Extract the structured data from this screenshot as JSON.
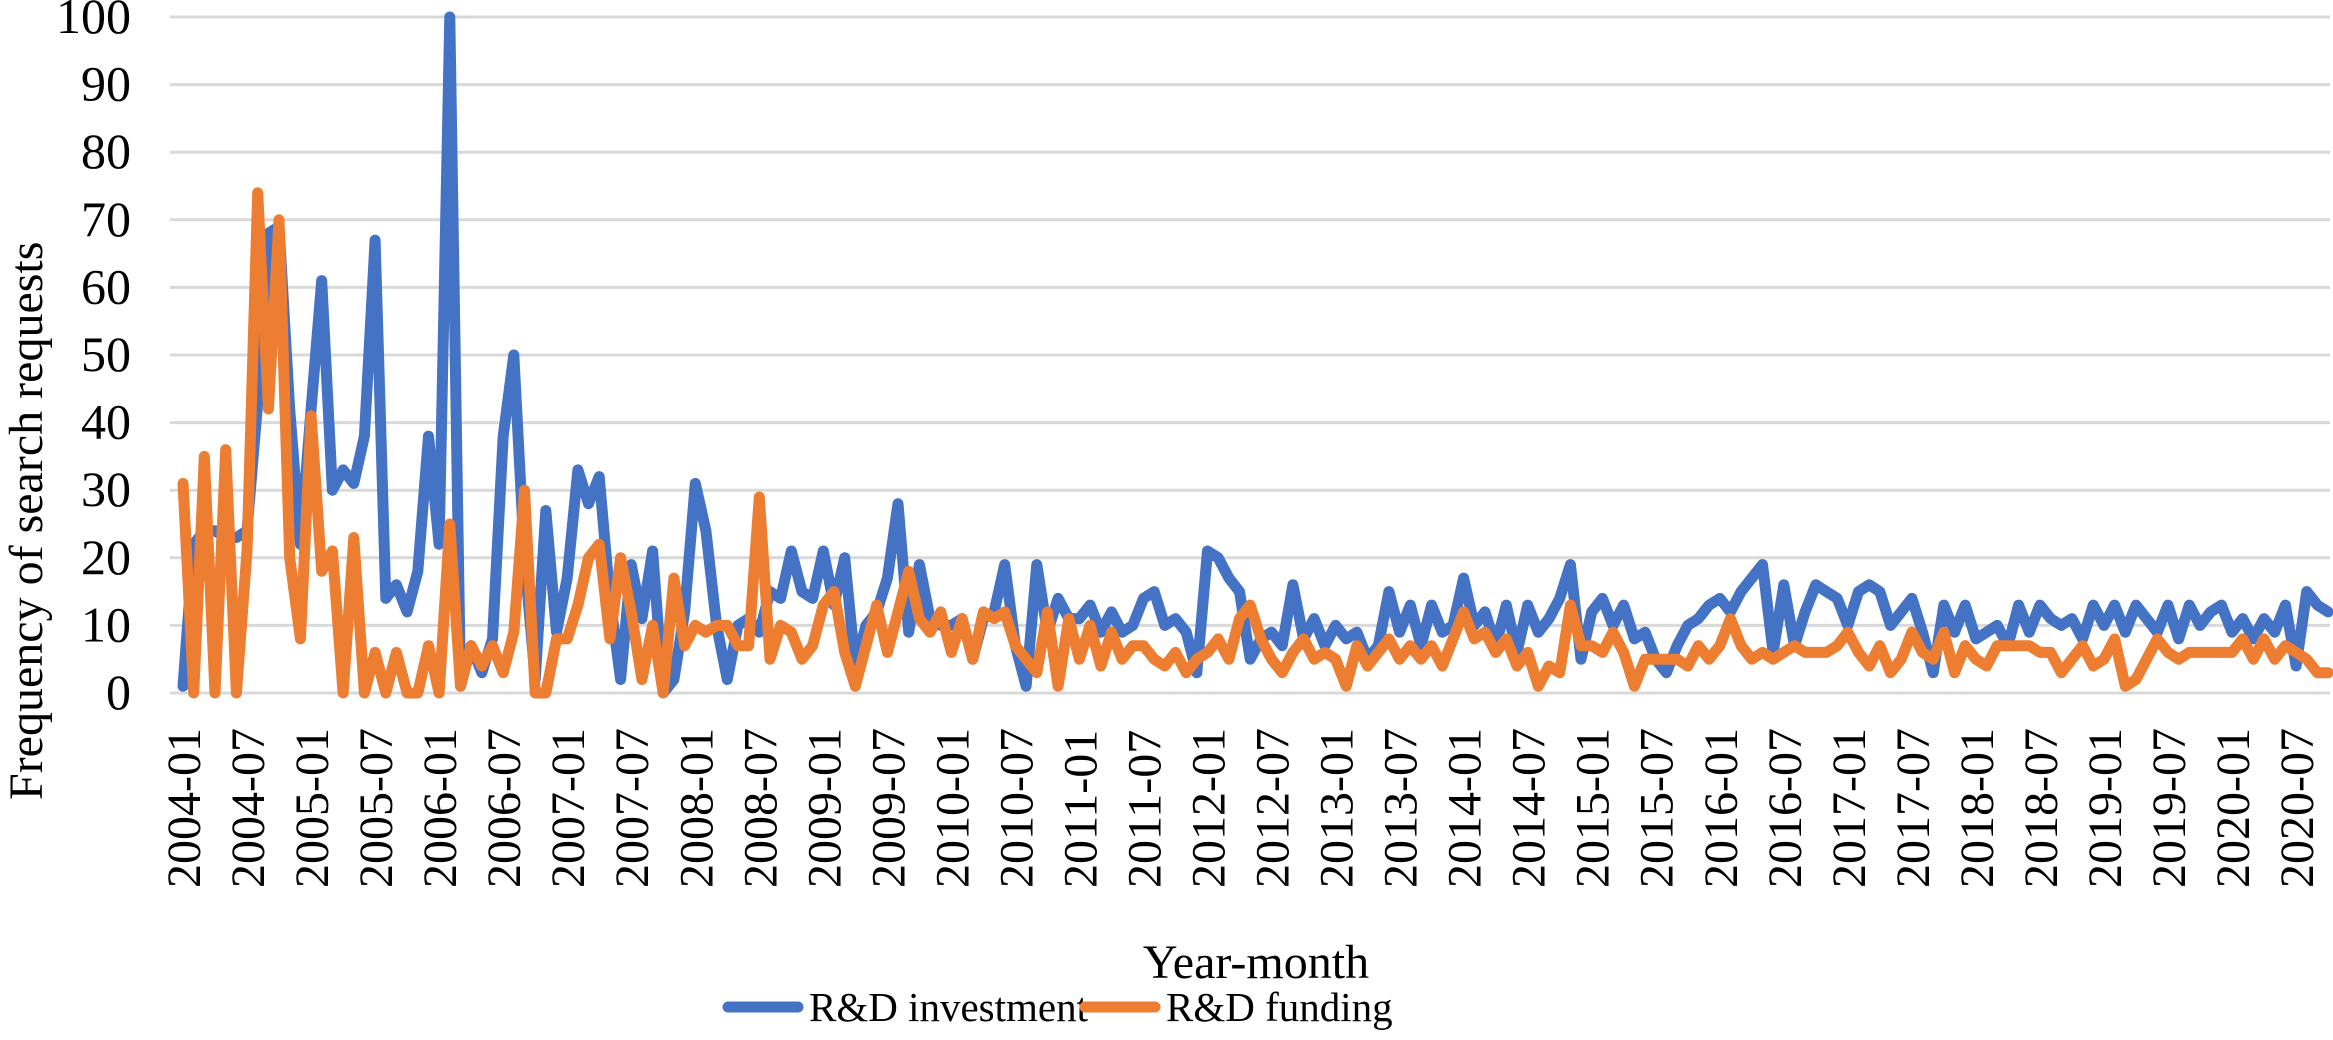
{
  "chart_data": {
    "type": "line",
    "title": "",
    "xlabel": "Year-month",
    "ylabel": "Frequency of search requests",
    "ylim": [
      0,
      100
    ],
    "grid": "horizontal",
    "legend_position": "bottom-center",
    "y_ticks": [
      "0",
      "10",
      "20",
      "30",
      "40",
      "50",
      "60",
      "70",
      "80",
      "90",
      "100"
    ],
    "x_start": "2004-01",
    "x_end": "2020-10",
    "x_tick_step_months": 6,
    "x_tick_labels": [
      "2004-01",
      "2004-07",
      "2005-01",
      "2005-07",
      "2006-01",
      "2006-07",
      "2007-01",
      "2007-07",
      "2008-01",
      "2008-07",
      "2009-01",
      "2009-07",
      "2010-01",
      "2010-07",
      "2011-01",
      "2011-07",
      "2012-01",
      "2012-07",
      "2013-01",
      "2013-07",
      "2014-01",
      "2014-07",
      "2015-01",
      "2015-07",
      "2016-01",
      "2016-07",
      "2017-01",
      "2017-07",
      "2018-01",
      "2018-07",
      "2019-01",
      "2019-07",
      "2020-01",
      "2020-07"
    ],
    "series": [
      {
        "name": "R&D investment",
        "color": "#4472C4",
        "values": [
          1,
          22,
          24,
          24,
          23,
          23,
          24,
          43,
          68,
          69,
          42,
          22,
          42,
          61,
          30,
          33,
          31,
          38,
          67,
          14,
          16,
          12,
          18,
          38,
          22,
          100,
          1,
          7,
          3,
          8,
          38,
          50,
          20,
          2,
          27,
          9,
          17,
          33,
          28,
          32,
          14,
          2,
          19,
          11,
          21,
          0,
          2,
          12,
          31,
          24,
          10,
          2,
          10,
          11,
          9,
          15,
          14,
          21,
          15,
          14,
          21,
          13,
          20,
          4,
          10,
          12,
          17,
          28,
          9,
          19,
          11,
          10,
          10,
          11,
          5,
          11,
          12,
          19,
          7,
          1,
          19,
          9,
          14,
          11,
          11,
          13,
          9,
          12,
          9,
          10,
          14,
          15,
          10,
          11,
          9,
          3,
          21,
          20,
          17,
          15,
          5,
          8,
          9,
          7,
          16,
          8,
          11,
          7,
          10,
          8,
          9,
          5,
          7,
          15,
          9,
          13,
          7,
          13,
          9,
          10,
          17,
          10,
          12,
          7,
          13,
          6,
          13,
          9,
          11,
          14,
          19,
          5,
          12,
          14,
          10,
          13,
          8,
          9,
          5,
          3,
          7,
          10,
          11,
          13,
          14,
          12,
          15,
          17,
          19,
          6,
          16,
          7,
          12,
          16,
          15,
          14,
          10,
          15,
          16,
          15,
          10,
          12,
          14,
          9,
          3,
          13,
          9,
          13,
          8,
          9,
          10,
          7,
          13,
          9,
          13,
          11,
          10,
          11,
          8,
          13,
          10,
          13,
          9,
          13,
          11,
          9,
          13,
          8,
          13,
          10,
          12,
          13,
          9,
          11,
          8,
          11,
          9,
          13,
          4,
          15,
          13,
          12
        ]
      },
      {
        "name": "R&D funding",
        "color": "#ED7D31",
        "values": [
          31,
          0,
          35,
          0,
          36,
          0,
          21,
          74,
          42,
          70,
          20,
          8,
          41,
          18,
          21,
          0,
          23,
          0,
          6,
          0,
          6,
          0,
          0,
          7,
          0,
          25,
          1,
          7,
          4,
          7,
          3,
          9,
          30,
          0,
          0,
          8,
          8,
          13,
          20,
          22,
          8,
          20,
          12,
          2,
          10,
          0,
          17,
          7,
          10,
          9,
          10,
          10,
          7,
          7,
          29,
          5,
          10,
          9,
          5,
          7,
          13,
          15,
          6,
          1,
          7,
          13,
          6,
          12,
          18,
          11,
          9,
          12,
          6,
          11,
          5,
          12,
          11,
          12,
          7,
          5,
          3,
          12,
          1,
          11,
          5,
          10,
          4,
          9,
          5,
          7,
          7,
          5,
          4,
          6,
          3,
          5,
          6,
          8,
          5,
          11,
          13,
          8,
          5,
          3,
          6,
          8,
          5,
          6,
          5,
          1,
          7,
          4,
          6,
          8,
          5,
          7,
          5,
          7,
          4,
          8,
          12,
          8,
          9,
          6,
          8,
          4,
          6,
          1,
          4,
          3,
          13,
          7,
          7,
          6,
          9,
          6,
          1,
          5,
          5,
          5,
          5,
          4,
          7,
          5,
          7,
          11,
          7,
          5,
          6,
          5,
          6,
          7,
          6,
          6,
          6,
          7,
          9,
          6,
          4,
          7,
          3,
          5,
          9,
          6,
          5,
          9,
          3,
          7,
          5,
          4,
          7,
          7,
          7,
          7,
          6,
          6,
          3,
          5,
          7,
          4,
          5,
          8,
          1,
          2,
          5,
          8,
          6,
          5,
          6,
          6,
          6,
          6,
          6,
          8,
          5,
          8,
          5,
          7,
          6,
          5,
          3,
          3
        ]
      }
    ]
  },
  "colors": {
    "grid": "#D9D9D9",
    "text": "#000000",
    "background": "#FFFFFF"
  }
}
